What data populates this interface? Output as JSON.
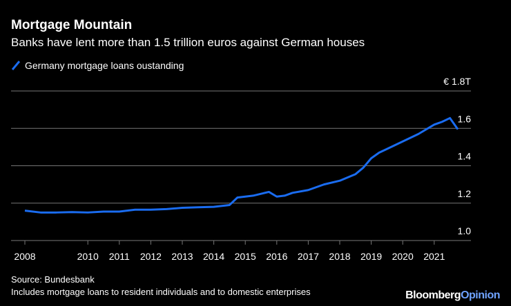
{
  "chart_data": {
    "type": "line",
    "title": "Mortgage Mountain",
    "subtitle": "Banks have lent more than 1.5 trillion euros against German houses",
    "x": [
      2008.0,
      2008.5,
      2009.0,
      2009.5,
      2010.0,
      2010.5,
      2011.0,
      2011.5,
      2012.0,
      2012.5,
      2013.0,
      2013.5,
      2014.0,
      2014.5,
      2014.75,
      2015.0,
      2015.25,
      2015.5,
      2015.75,
      2016.0,
      2016.25,
      2016.5,
      2017.0,
      2017.5,
      2018.0,
      2018.5,
      2018.75,
      2019.0,
      2019.25,
      2019.5,
      2020.0,
      2020.5,
      2021.0,
      2021.25,
      2021.5,
      2021.75
    ],
    "series": [
      {
        "name": "Germany mortgage loans oustanding",
        "color": "#1a6cf0",
        "values": [
          1.16,
          1.15,
          1.15,
          1.152,
          1.15,
          1.155,
          1.155,
          1.165,
          1.165,
          1.168,
          1.175,
          1.178,
          1.18,
          1.19,
          1.23,
          1.235,
          1.24,
          1.25,
          1.26,
          1.235,
          1.24,
          1.255,
          1.27,
          1.3,
          1.32,
          1.355,
          1.39,
          1.44,
          1.47,
          1.49,
          1.53,
          1.57,
          1.62,
          1.635,
          1.655,
          1.595
        ]
      }
    ],
    "xlim": [
      2008.0,
      2021.75
    ],
    "xticks": [
      2008,
      2010,
      2011,
      2012,
      2013,
      2014,
      2015,
      2016,
      2017,
      2018,
      2019,
      2020,
      2021
    ],
    "ylim": [
      1.0,
      1.8
    ],
    "yticks": [
      {
        "value": 1.0,
        "label": "1.0"
      },
      1.2,
      1.4,
      1.6,
      {
        "value": 1.8,
        "label": "€ 1.8T"
      }
    ],
    "grid": true,
    "source": "Source: Bundesbank",
    "note": "Includes mortgage loans to resident individuals and to domestic enterprises",
    "brand": "Bloomberg",
    "brand_suffix": "Opinion"
  }
}
